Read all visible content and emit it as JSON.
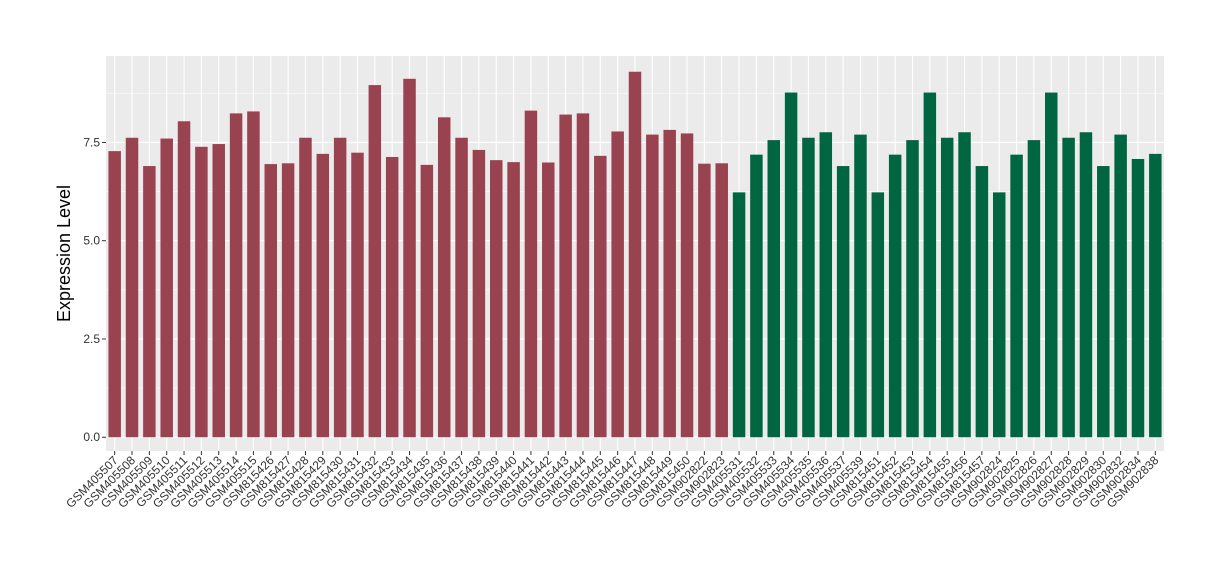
{
  "chart_data": {
    "type": "bar",
    "ylabel": "Expression Level",
    "xlabel": "",
    "ylim": [
      -0.35,
      9.7
    ],
    "yticks": [
      "0.0",
      "2.5",
      "5.0",
      "7.5"
    ],
    "grid": true,
    "categories": [
      "GSM405507",
      "GSM405508",
      "GSM405509",
      "GSM405510",
      "GSM405511",
      "GSM405512",
      "GSM405513",
      "GSM405514",
      "GSM405515",
      "GSM815426",
      "GSM815427",
      "GSM815428",
      "GSM815429",
      "GSM815430",
      "GSM815431",
      "GSM815432",
      "GSM815433",
      "GSM815434",
      "GSM815435",
      "GSM815436",
      "GSM815437",
      "GSM815438",
      "GSM815439",
      "GSM815440",
      "GSM815441",
      "GSM815442",
      "GSM815443",
      "GSM815444",
      "GSM815445",
      "GSM815446",
      "GSM815447",
      "GSM815448",
      "GSM815449",
      "GSM815450",
      "GSM902822",
      "GSM902823",
      "GSM405531",
      "GSM405532",
      "GSM405533",
      "GSM405534",
      "GSM405535",
      "GSM405536",
      "GSM405537",
      "GSM405539",
      "GSM815451",
      "GSM815452",
      "GSM815453",
      "GSM815454",
      "GSM815455",
      "GSM815456",
      "GSM815457",
      "GSM902824",
      "GSM902825",
      "GSM902826",
      "GSM902827",
      "GSM902828",
      "GSM902829",
      "GSM902830",
      "GSM902832",
      "GSM902834",
      "GSM902838"
    ],
    "values": [
      7.28,
      7.62,
      6.9,
      7.6,
      8.04,
      7.39,
      7.46,
      8.24,
      8.29,
      6.95,
      6.97,
      7.62,
      7.21,
      7.62,
      7.24,
      8.96,
      7.13,
      9.12,
      6.93,
      8.14,
      7.62,
      7.31,
      7.05,
      7.0,
      8.31,
      6.99,
      8.21,
      8.24,
      7.16,
      7.78,
      9.3,
      7.7,
      7.82,
      7.73,
      6.96,
      6.97,
      6.23,
      7.19,
      7.56,
      8.77,
      7.62,
      7.76,
      6.9,
      7.7,
      6.23,
      7.19,
      7.56,
      8.77,
      7.62,
      7.76,
      6.9,
      6.23,
      7.19,
      7.56,
      8.77,
      7.62,
      7.76,
      6.9,
      7.7,
      7.08,
      7.21
    ],
    "group_sizes": [
      36,
      25
    ],
    "colors": [
      "#9a4350",
      "#006641"
    ],
    "panel_background": "#ebebeb",
    "grid_color": "#ffffff"
  }
}
